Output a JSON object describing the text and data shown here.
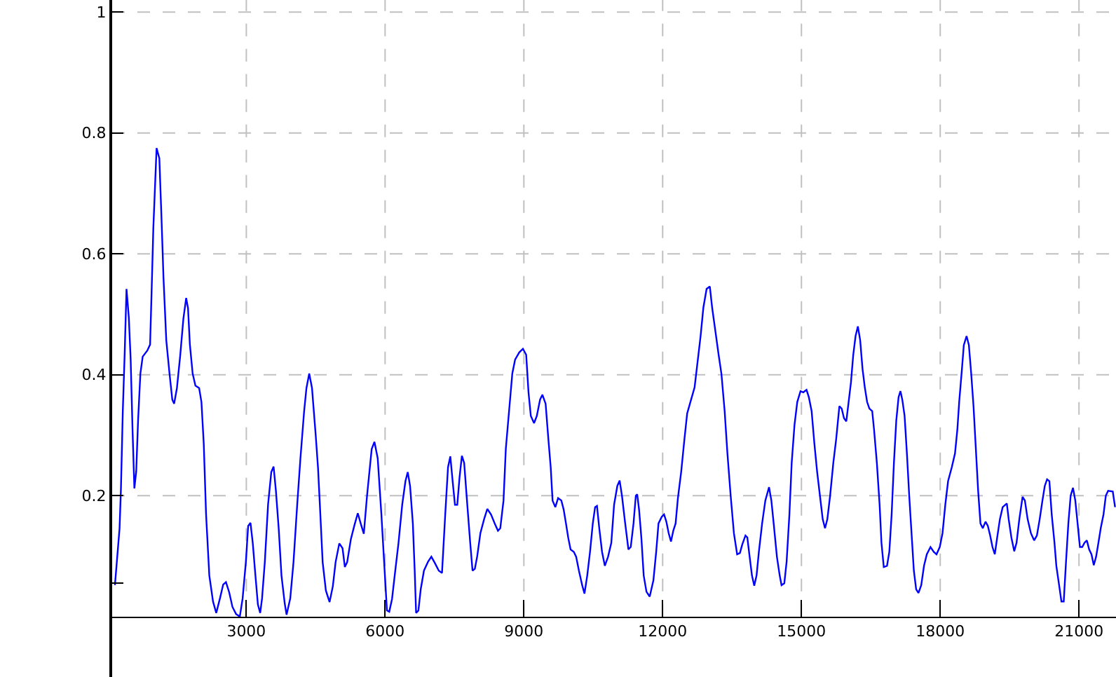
{
  "chart_data": {
    "type": "line",
    "x": [
      160,
      260,
      290,
      330,
      370,
      410,
      460,
      500,
      540,
      580,
      620,
      660,
      710,
      760,
      860,
      920,
      960,
      990,
      1060,
      1120,
      1170,
      1210,
      1270,
      1340,
      1400,
      1440,
      1500,
      1570,
      1640,
      1700,
      1740,
      1780,
      1840,
      1900,
      1980,
      2030,
      2080,
      2130,
      2200,
      2280,
      2350,
      2430,
      2500,
      2560,
      2630,
      2700,
      2780,
      2860,
      2920,
      2990,
      3040,
      3090,
      3140,
      3190,
      3250,
      3300,
      3340,
      3400,
      3470,
      3540,
      3590,
      3640,
      3700,
      3760,
      3830,
      3870,
      3950,
      4020,
      4100,
      4170,
      4250,
      4300,
      4360,
      4420,
      4500,
      4550,
      4590,
      4650,
      4720,
      4800,
      4870,
      4930,
      5010,
      5080,
      5130,
      5180,
      5260,
      5340,
      5410,
      5480,
      5540,
      5610,
      5710,
      5770,
      5840,
      5920,
      5990,
      6040,
      6090,
      6150,
      6220,
      6290,
      6370,
      6440,
      6490,
      6540,
      6600,
      6640,
      6670,
      6720,
      6770,
      6840,
      6930,
      7000,
      7080,
      7160,
      7230,
      7300,
      7360,
      7410,
      7460,
      7510,
      7560,
      7610,
      7660,
      7710,
      7770,
      7840,
      7890,
      7940,
      7990,
      8060,
      8140,
      8210,
      8290,
      8370,
      8440,
      8490,
      8560,
      8610,
      8680,
      8750,
      8810,
      8900,
      8980,
      9050,
      9100,
      9150,
      9220,
      9280,
      9350,
      9400,
      9470,
      9530,
      9580,
      9620,
      9680,
      9740,
      9810,
      9860,
      9910,
      9960,
      10010,
      10080,
      10130,
      10190,
      10260,
      10310,
      10370,
      10430,
      10490,
      10540,
      10580,
      10630,
      10690,
      10750,
      10820,
      10890,
      10950,
      11020,
      11070,
      11120,
      11190,
      11260,
      11310,
      11370,
      11420,
      11450,
      11490,
      11540,
      11590,
      11650,
      11720,
      11800,
      11860,
      11910,
      11980,
      12030,
      12080,
      12130,
      12180,
      12230,
      12280,
      12330,
      12400,
      12470,
      12530,
      12600,
      12690,
      12750,
      12820,
      12880,
      12950,
      13020,
      13070,
      13140,
      13210,
      13270,
      13340,
      13400,
      13470,
      13540,
      13610,
      13670,
      13720,
      13790,
      13830,
      13880,
      13930,
      13980,
      14030,
      14080,
      14150,
      14220,
      14300,
      14350,
      14400,
      14470,
      14530,
      14570,
      14630,
      14680,
      14740,
      14790,
      14850,
      14910,
      14980,
      15040,
      15110,
      15160,
      15220,
      15280,
      15340,
      15400,
      15460,
      15510,
      15560,
      15620,
      15690,
      15750,
      15820,
      15870,
      15920,
      15970,
      16020,
      16070,
      16120,
      16170,
      16220,
      16270,
      16320,
      16370,
      16420,
      16470,
      16530,
      16570,
      16630,
      16690,
      16730,
      16780,
      16850,
      16900,
      16950,
      17000,
      17050,
      17100,
      17140,
      17180,
      17230,
      17280,
      17330,
      17380,
      17430,
      17480,
      17530,
      17590,
      17650,
      17710,
      17790,
      17860,
      17920,
      17990,
      18050,
      18110,
      18170,
      18250,
      18320,
      18370,
      18410,
      18470,
      18510,
      18570,
      18620,
      18670,
      18720,
      18770,
      18820,
      18870,
      18920,
      18980,
      19030,
      19080,
      19130,
      19180,
      19230,
      19290,
      19350,
      19440,
      19480,
      19540,
      19600,
      19650,
      19710,
      19780,
      19830,
      19890,
      19960,
      20030,
      20090,
      20150,
      20210,
      20260,
      20310,
      20360,
      20410,
      20470,
      20510,
      20570,
      20620,
      20670,
      20720,
      20770,
      20820,
      20870,
      20920,
      20970,
      21020,
      21070,
      21120,
      21170,
      21220,
      21270,
      21320,
      21370,
      21420,
      21470,
      21530,
      21580,
      21630,
      21730,
      21780
    ],
    "series": [
      {
        "color": "#0000ff",
        "values": [
          0.052,
          0.146,
          0.212,
          0.34,
          0.434,
          0.542,
          0.495,
          0.425,
          0.31,
          0.212,
          0.24,
          0.324,
          0.402,
          0.43,
          0.44,
          0.45,
          0.558,
          0.643,
          0.775,
          0.758,
          0.651,
          0.56,
          0.457,
          0.402,
          0.359,
          0.352,
          0.378,
          0.431,
          0.493,
          0.527,
          0.51,
          0.45,
          0.402,
          0.382,
          0.378,
          0.355,
          0.286,
          0.169,
          0.068,
          0.025,
          0.006,
          0.03,
          0.053,
          0.057,
          0.04,
          0.016,
          0.004,
          0.0,
          0.03,
          0.09,
          0.15,
          0.155,
          0.121,
          0.074,
          0.02,
          0.006,
          0.03,
          0.09,
          0.185,
          0.239,
          0.248,
          0.208,
          0.146,
          0.068,
          0.022,
          0.003,
          0.03,
          0.09,
          0.185,
          0.262,
          0.34,
          0.378,
          0.402,
          0.378,
          0.3,
          0.246,
          0.185,
          0.09,
          0.043,
          0.024,
          0.05,
          0.09,
          0.121,
          0.113,
          0.082,
          0.09,
          0.128,
          0.152,
          0.171,
          0.152,
          0.137,
          0.2,
          0.277,
          0.289,
          0.262,
          0.169,
          0.076,
          0.01,
          0.008,
          0.029,
          0.076,
          0.122,
          0.185,
          0.224,
          0.239,
          0.216,
          0.154,
          0.076,
          0.006,
          0.01,
          0.045,
          0.076,
          0.091,
          0.099,
          0.088,
          0.076,
          0.072,
          0.169,
          0.247,
          0.265,
          0.224,
          0.185,
          0.185,
          0.231,
          0.266,
          0.254,
          0.192,
          0.122,
          0.076,
          0.079,
          0.099,
          0.138,
          0.161,
          0.178,
          0.169,
          0.154,
          0.142,
          0.146,
          0.192,
          0.278,
          0.34,
          0.402,
          0.425,
          0.437,
          0.443,
          0.433,
          0.371,
          0.332,
          0.32,
          0.332,
          0.359,
          0.367,
          0.352,
          0.293,
          0.247,
          0.192,
          0.181,
          0.196,
          0.192,
          0.177,
          0.154,
          0.13,
          0.111,
          0.107,
          0.099,
          0.076,
          0.052,
          0.038,
          0.068,
          0.107,
          0.154,
          0.181,
          0.183,
          0.146,
          0.107,
          0.084,
          0.099,
          0.122,
          0.185,
          0.216,
          0.225,
          0.2,
          0.154,
          0.111,
          0.115,
          0.154,
          0.2,
          0.202,
          0.177,
          0.13,
          0.068,
          0.041,
          0.033,
          0.06,
          0.107,
          0.154,
          0.165,
          0.169,
          0.157,
          0.138,
          0.124,
          0.142,
          0.154,
          0.196,
          0.239,
          0.293,
          0.336,
          0.355,
          0.379,
          0.418,
          0.464,
          0.511,
          0.542,
          0.546,
          0.511,
          0.472,
          0.433,
          0.402,
          0.34,
          0.27,
          0.2,
          0.138,
          0.103,
          0.105,
          0.119,
          0.134,
          0.131,
          0.099,
          0.068,
          0.051,
          0.068,
          0.107,
          0.154,
          0.192,
          0.214,
          0.192,
          0.154,
          0.099,
          0.068,
          0.052,
          0.055,
          0.091,
          0.169,
          0.255,
          0.317,
          0.355,
          0.373,
          0.371,
          0.375,
          0.363,
          0.34,
          0.286,
          0.239,
          0.2,
          0.161,
          0.146,
          0.161,
          0.2,
          0.255,
          0.293,
          0.348,
          0.344,
          0.328,
          0.323,
          0.355,
          0.387,
          0.433,
          0.464,
          0.48,
          0.457,
          0.41,
          0.379,
          0.355,
          0.344,
          0.34,
          0.309,
          0.255,
          0.185,
          0.122,
          0.082,
          0.084,
          0.107,
          0.169,
          0.255,
          0.324,
          0.363,
          0.373,
          0.359,
          0.332,
          0.27,
          0.2,
          0.138,
          0.076,
          0.045,
          0.039,
          0.052,
          0.084,
          0.103,
          0.115,
          0.107,
          0.103,
          0.115,
          0.138,
          0.185,
          0.224,
          0.247,
          0.27,
          0.309,
          0.355,
          0.41,
          0.449,
          0.464,
          0.449,
          0.402,
          0.348,
          0.278,
          0.208,
          0.154,
          0.146,
          0.157,
          0.15,
          0.134,
          0.115,
          0.103,
          0.13,
          0.161,
          0.181,
          0.187,
          0.161,
          0.13,
          0.108,
          0.122,
          0.161,
          0.198,
          0.192,
          0.161,
          0.138,
          0.126,
          0.134,
          0.161,
          0.192,
          0.216,
          0.227,
          0.224,
          0.169,
          0.122,
          0.084,
          0.052,
          0.025,
          0.025,
          0.091,
          0.154,
          0.2,
          0.213,
          0.192,
          0.154,
          0.115,
          0.115,
          0.122,
          0.126,
          0.111,
          0.103,
          0.085,
          0.099,
          0.122,
          0.146,
          0.169,
          0.2,
          0.208,
          0.207,
          0.181
        ]
      }
    ],
    "xlim": [
      100,
      21800
    ],
    "xticks": [
      3000,
      6000,
      9000,
      12000,
      15000,
      18000,
      21000
    ],
    "ylim": [
      -0.1,
      1.02
    ],
    "yticks": [
      {
        "value": 0.055,
        "label": null
      },
      0.2,
      0.4,
      0.6,
      0.8,
      1
    ],
    "grid": true
  }
}
